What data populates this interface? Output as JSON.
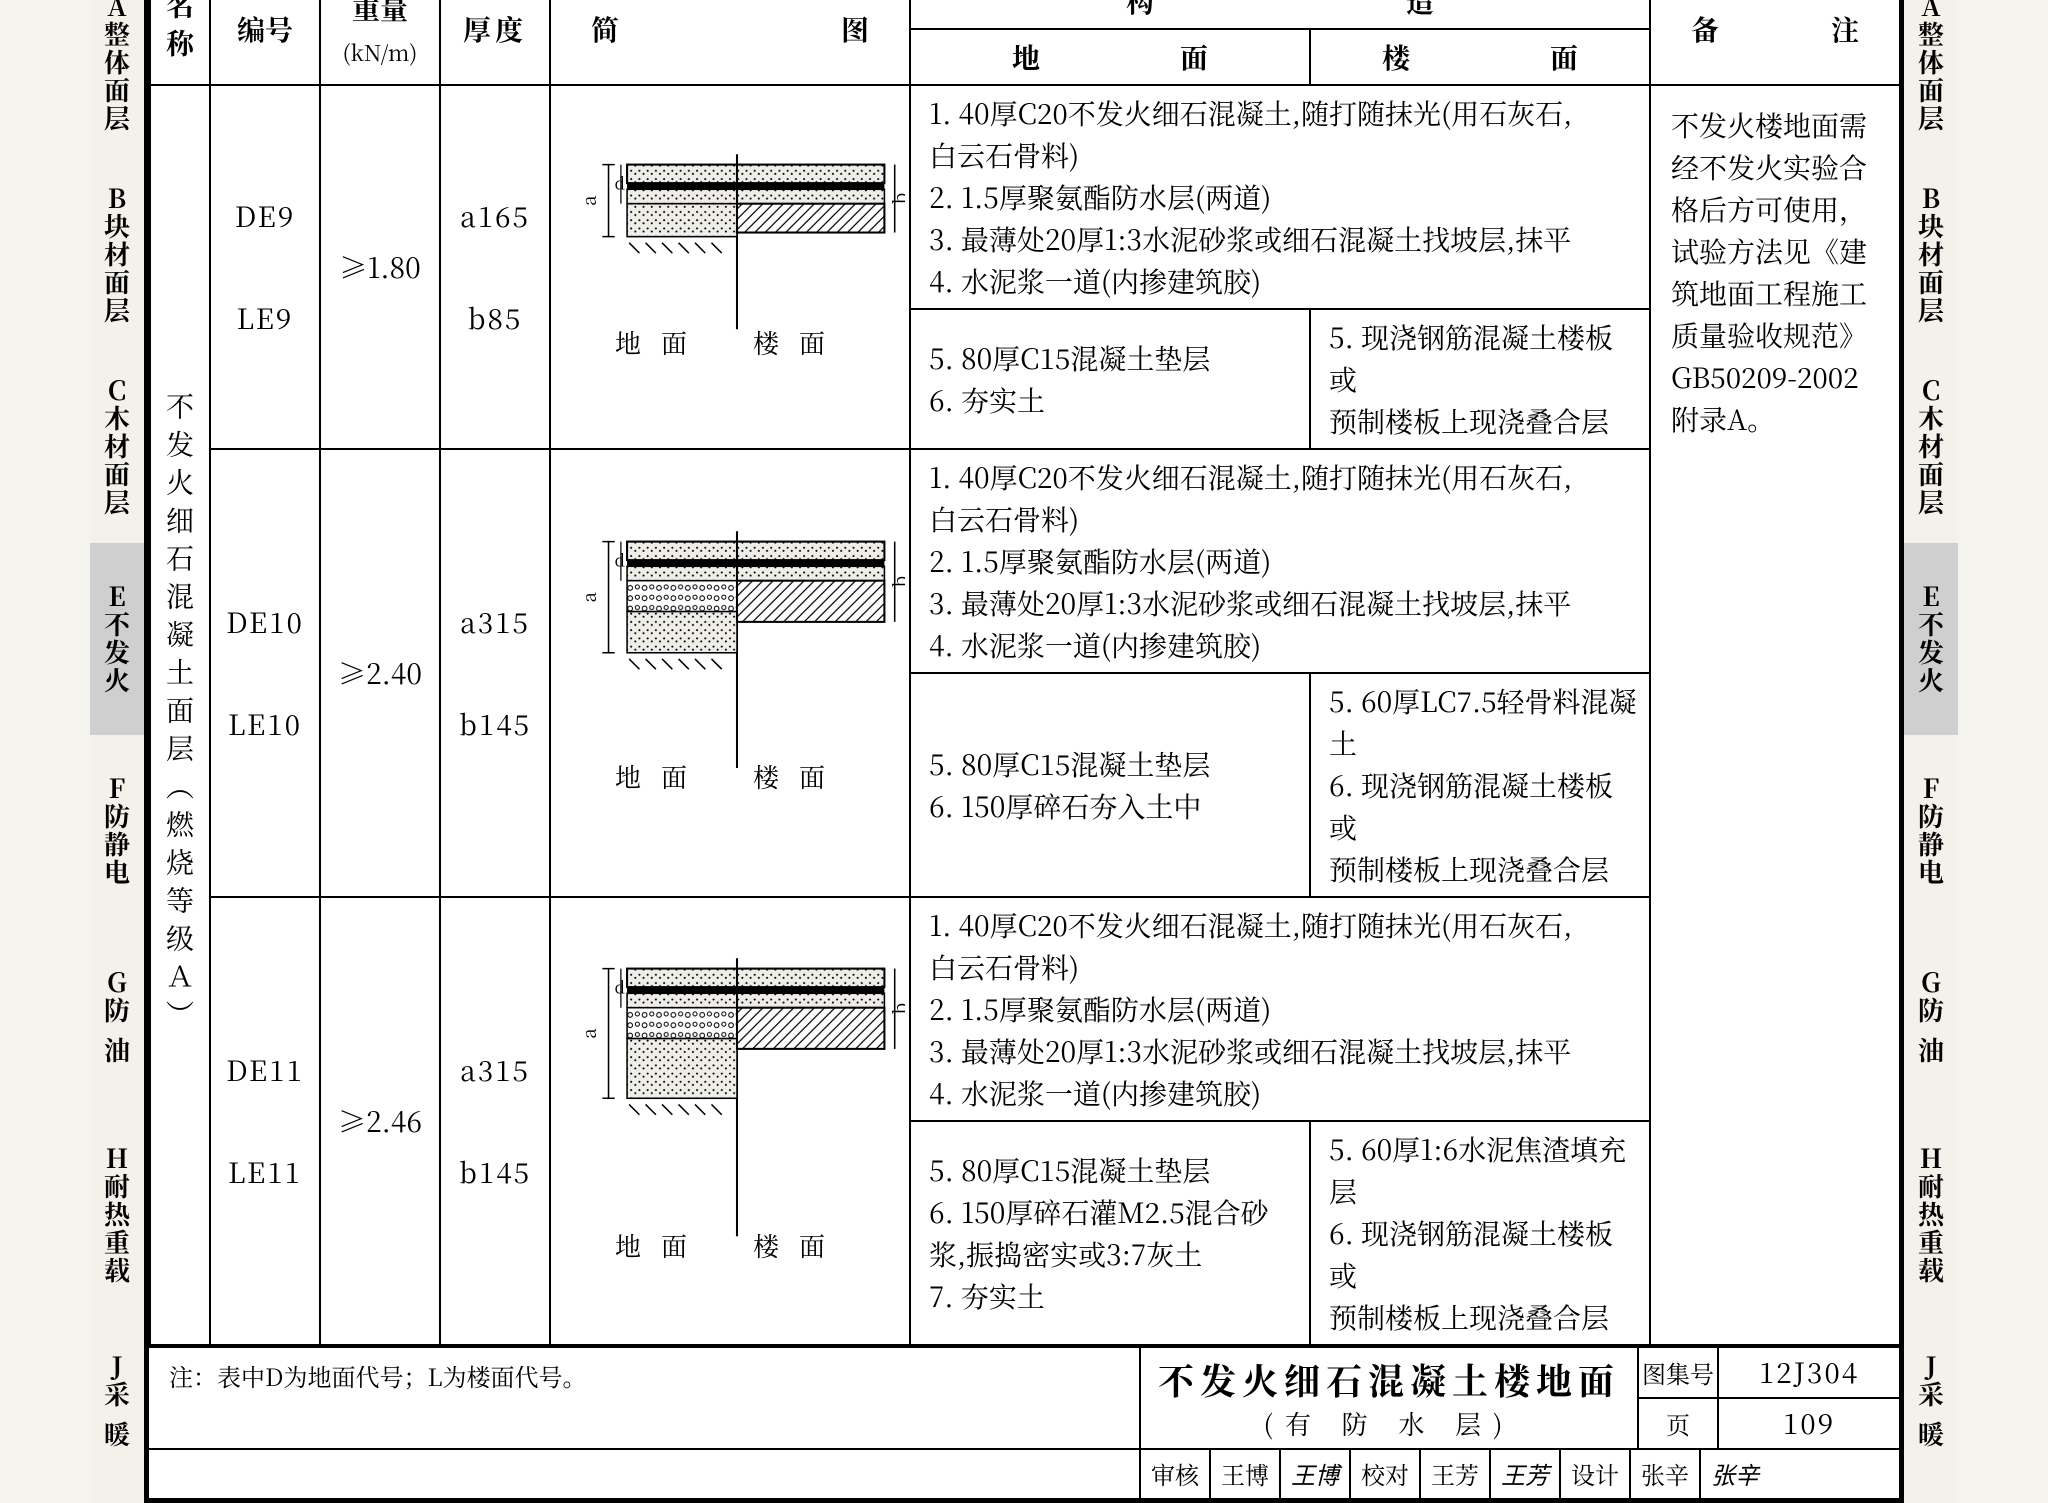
{
  "side_tabs": [
    {
      "code": "A",
      "label": "整体面层",
      "on": false
    },
    {
      "code": "B",
      "label": "块材面层",
      "on": false
    },
    {
      "code": "C",
      "label": "木材面层",
      "on": false
    },
    {
      "code": "E",
      "label": "不发火",
      "on": true
    },
    {
      "code": "F",
      "label": "防静电",
      "on": false
    },
    {
      "code": "G",
      "label": "防油",
      "on": false,
      "spaced": true
    },
    {
      "code": "H",
      "label": "耐热重载",
      "on": false
    },
    {
      "code": "J",
      "label": "采暖",
      "on": false,
      "spaced": true
    }
  ],
  "headers": {
    "name": "名称",
    "code": "编号",
    "weight": "重量",
    "weight_unit": "(kN/m)",
    "thickness": "厚度",
    "diagram": "简　　图",
    "construct": "构　　　　　　　　　造",
    "ground": "地　　　　　面",
    "floor": "楼　　　　　面",
    "remark": "备　　注"
  },
  "name_column": "不发火细石混凝土面层（燃烧等级Ａ）",
  "rows": [
    {
      "codes": [
        "DE9",
        "LE9"
      ],
      "weight": "≥1.80",
      "thickness": [
        "a165",
        "b85"
      ],
      "common": [
        "1.  40厚C20不发火细石混凝土,随打随抹光(用石灰石,",
        "    白云石骨料)",
        "2.  1.5厚聚氨酯防水层(两道)",
        "3.  最薄处20厚1:3水泥砂浆或细石混凝土找坡层,抹平",
        "4.  水泥浆一道(内掺建筑胶)"
      ],
      "ground": [
        "5.  80厚C15混凝土垫层",
        "6.  夯实土"
      ],
      "floor": [
        "5. 现浇钢筋混凝土楼板或",
        "   预制楼板上现浇叠合层"
      ],
      "diagram_label_left": "地面",
      "diagram_label_right": "楼面"
    },
    {
      "codes": [
        "DE10",
        "LE10"
      ],
      "weight": "≥2.40",
      "thickness": [
        "a315",
        "b145"
      ],
      "common": [
        "1.  40厚C20不发火细石混凝土,随打随抹光(用石灰石,",
        "    白云石骨料)",
        "2.  1.5厚聚氨酯防水层(两道)",
        "3.  最薄处20厚1:3水泥砂浆或细石混凝土找坡层,抹平",
        "4.  水泥浆一道(内掺建筑胶)"
      ],
      "ground": [
        "5.  80厚C15混凝土垫层",
        "6.  150厚碎石夯入土中"
      ],
      "floor": [
        "5. 60厚LC7.5轻骨料混凝土",
        "6. 现浇钢筋混凝土楼板或",
        "   预制楼板上现浇叠合层"
      ],
      "diagram_label_left": "地面",
      "diagram_label_right": "楼面"
    },
    {
      "codes": [
        "DE11",
        "LE11"
      ],
      "weight": "≥2.46",
      "thickness": [
        "a315",
        "b145"
      ],
      "common": [
        "1.  40厚C20不发火细石混凝土,随打随抹光(用石灰石,",
        "    白云石骨料)",
        "2.  1.5厚聚氨酯防水层(两道)",
        "3.  最薄处20厚1:3水泥砂浆或细石混凝土找坡层,抹平",
        "4.  水泥浆一道(内掺建筑胶)"
      ],
      "ground": [
        "5.  80厚C15混凝土垫层",
        "6.  150厚碎石灌M2.5混合砂",
        "    浆,振捣密实或3:7灰土",
        "7.  夯实土"
      ],
      "floor": [
        "5. 60厚1:6水泥焦渣填充层",
        "6. 现浇钢筋混凝土楼板或",
        "   预制楼板上现浇叠合层"
      ],
      "diagram_label_left": "地面",
      "diagram_label_right": "楼面"
    }
  ],
  "remark_text": "不发火楼地面需经不发火实验合格后方可使用，试验方法见《建筑地面工程施工质量验收规范》GB50209-2002附录A。",
  "footer": {
    "note": "注：表中D为地面代号；L为楼面代号。",
    "title": "不发火细石混凝土楼地面",
    "subtitle": "(有 防 水 层)",
    "album_label": "图集号",
    "album_value": "12J304",
    "page_label": "页",
    "page_value": "109",
    "signoff": [
      {
        "lab": "审核",
        "name": "王博",
        "sig": "王博"
      },
      {
        "lab": "校对",
        "name": "王芳",
        "sig": "王芳"
      },
      {
        "lab": "设计",
        "name": "张辛",
        "sig": "张辛"
      }
    ]
  },
  "diagram_style": {
    "stroke": "#000000",
    "fill_dots": "#e9e7e2",
    "fill_hatch": "#ffffff",
    "thin": 1.5,
    "thick": 3
  }
}
